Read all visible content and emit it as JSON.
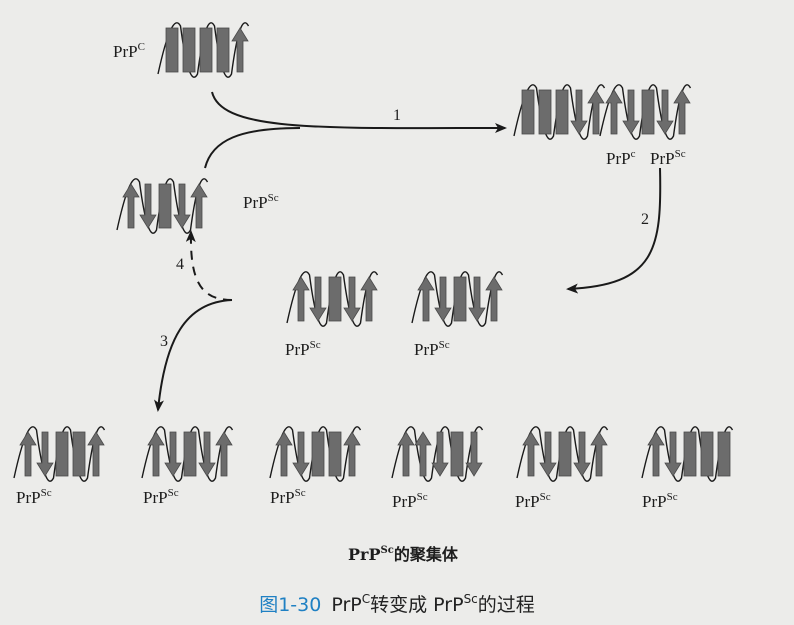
{
  "labels": {
    "prpc": {
      "base": "PrP",
      "sup": "C"
    },
    "prpsc": {
      "base": "PrP",
      "sup": "Sc"
    },
    "prpc_small": {
      "base": "PrP",
      "sup": "c"
    },
    "aggregate": {
      "base": "PrP",
      "sup": "Sc",
      "suffix": "的聚集体"
    }
  },
  "steps": [
    "1",
    "2",
    "3",
    "4"
  ],
  "caption": {
    "figure": "图1-30",
    "prefix": "PrP",
    "sup1": "C",
    "middle": "转变成 PrP",
    "sup2": "Sc",
    "suffix": "的过程"
  },
  "colors": {
    "protein": "#6c6c6c",
    "line": "#1a1a1a",
    "figure_number": "#1f80c3"
  }
}
